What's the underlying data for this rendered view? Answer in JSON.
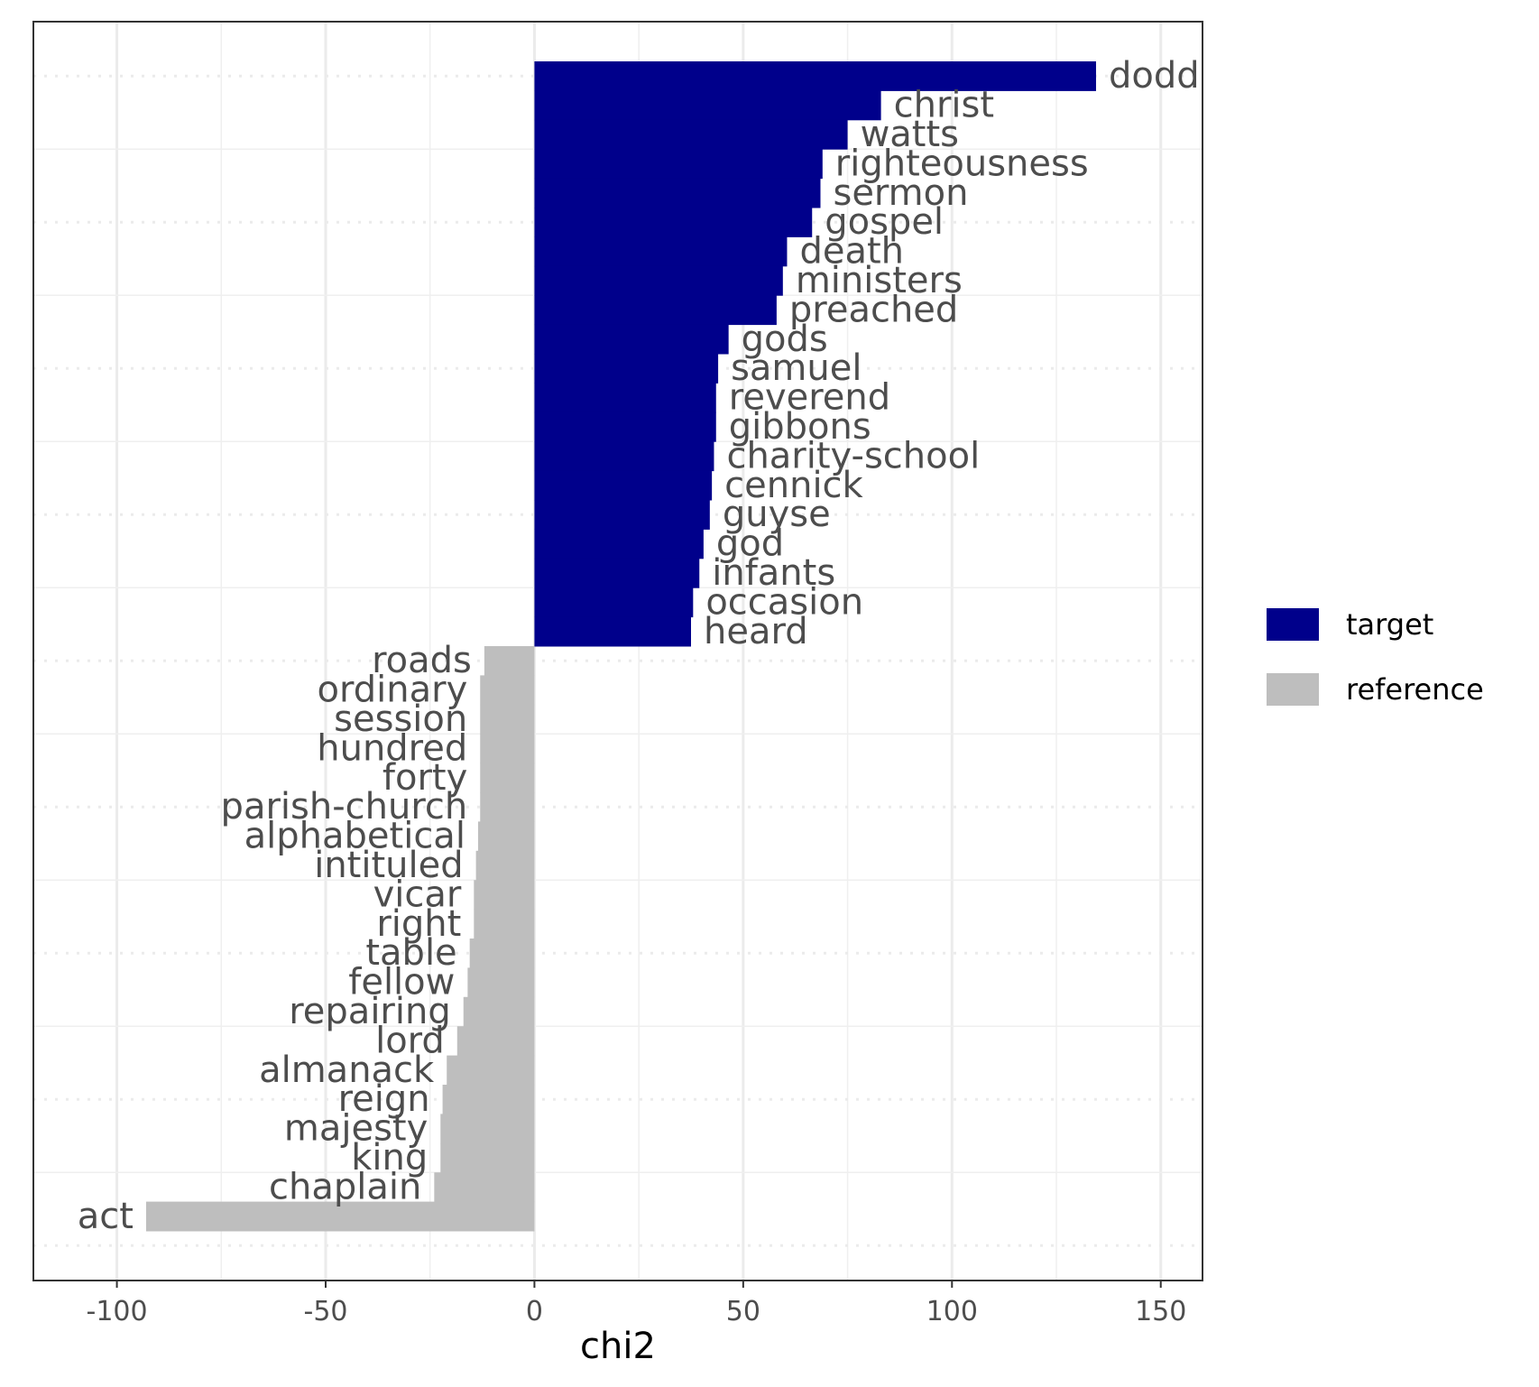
{
  "chart_data": {
    "type": "bar",
    "orientation": "horizontal",
    "xlabel": "chi2",
    "ylabel": "",
    "xlim": [
      -120,
      160
    ],
    "x_ticks": [
      -100,
      -50,
      0,
      50,
      100,
      150
    ],
    "x_tick_labels": [
      "-100",
      "-50",
      "0",
      "50",
      "100",
      "150"
    ],
    "grid": true,
    "legend": {
      "placement": "right",
      "entries": [
        {
          "label": "target",
          "color": "#00008B"
        },
        {
          "label": "reference",
          "color": "#BEBEBE"
        }
      ]
    },
    "colors": {
      "target": "#00008B",
      "reference": "#BEBEBE"
    },
    "bars": [
      {
        "label": "dodd",
        "value": 134.5,
        "group": "target"
      },
      {
        "label": "christ",
        "value": 83.0,
        "group": "target"
      },
      {
        "label": "watts",
        "value": 75.0,
        "group": "target"
      },
      {
        "label": "righteousness",
        "value": 69.0,
        "group": "target"
      },
      {
        "label": "sermon",
        "value": 68.5,
        "group": "target"
      },
      {
        "label": "gospel",
        "value": 66.5,
        "group": "target"
      },
      {
        "label": "death",
        "value": 60.5,
        "group": "target"
      },
      {
        "label": "ministers",
        "value": 59.5,
        "group": "target"
      },
      {
        "label": "preached",
        "value": 58.0,
        "group": "target"
      },
      {
        "label": "gods",
        "value": 46.5,
        "group": "target"
      },
      {
        "label": "samuel",
        "value": 44.0,
        "group": "target"
      },
      {
        "label": "reverend",
        "value": 43.5,
        "group": "target"
      },
      {
        "label": "gibbons",
        "value": 43.5,
        "group": "target"
      },
      {
        "label": "charity-school",
        "value": 43.0,
        "group": "target"
      },
      {
        "label": "cennick",
        "value": 42.5,
        "group": "target"
      },
      {
        "label": "guyse",
        "value": 42.0,
        "group": "target"
      },
      {
        "label": "god",
        "value": 40.5,
        "group": "target"
      },
      {
        "label": "infants",
        "value": 39.5,
        "group": "target"
      },
      {
        "label": "occasion",
        "value": 38.0,
        "group": "target"
      },
      {
        "label": "heard",
        "value": 37.5,
        "group": "target"
      },
      {
        "label": "roads",
        "value": -12.0,
        "group": "reference"
      },
      {
        "label": "ordinary",
        "value": -13.0,
        "group": "reference"
      },
      {
        "label": "session",
        "value": -13.0,
        "group": "reference"
      },
      {
        "label": "hundred",
        "value": -13.0,
        "group": "reference"
      },
      {
        "label": "forty",
        "value": -13.0,
        "group": "reference"
      },
      {
        "label": "parish-church",
        "value": -13.0,
        "group": "reference"
      },
      {
        "label": "alphabetical",
        "value": -13.5,
        "group": "reference"
      },
      {
        "label": "intituled",
        "value": -14.0,
        "group": "reference"
      },
      {
        "label": "vicar",
        "value": -14.5,
        "group": "reference"
      },
      {
        "label": "right",
        "value": -14.5,
        "group": "reference"
      },
      {
        "label": "table",
        "value": -15.5,
        "group": "reference"
      },
      {
        "label": "fellow",
        "value": -16.0,
        "group": "reference"
      },
      {
        "label": "repairing",
        "value": -17.0,
        "group": "reference"
      },
      {
        "label": "lord",
        "value": -18.5,
        "group": "reference"
      },
      {
        "label": "almanack",
        "value": -21.0,
        "group": "reference"
      },
      {
        "label": "reign",
        "value": -22.0,
        "group": "reference"
      },
      {
        "label": "majesty",
        "value": -22.5,
        "group": "reference"
      },
      {
        "label": "king",
        "value": -22.5,
        "group": "reference"
      },
      {
        "label": "chaplain",
        "value": -24.0,
        "group": "reference"
      },
      {
        "label": "act",
        "value": -93.0,
        "group": "reference"
      }
    ]
  }
}
